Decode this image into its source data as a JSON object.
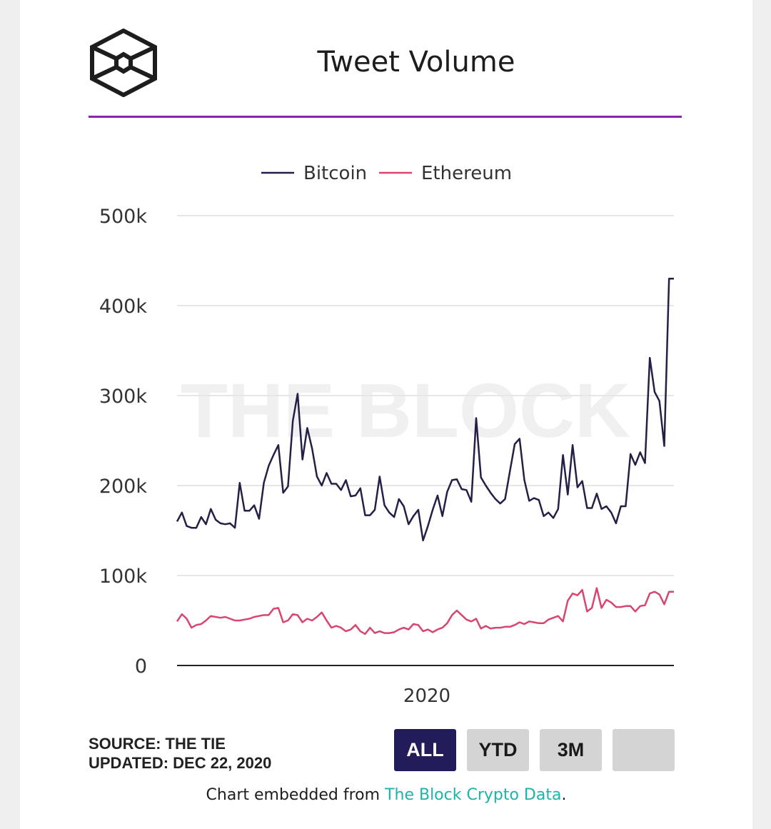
{
  "header": {
    "title": "Tweet Volume"
  },
  "chart_data": {
    "type": "line",
    "title": "Tweet Volume",
    "x_tick_labels": [
      "2020"
    ],
    "y_tick_labels": [
      "0",
      "100k",
      "200k",
      "300k",
      "400k",
      "500k"
    ],
    "y_ticks": [
      0,
      100000,
      200000,
      300000,
      400000,
      500000
    ],
    "ylim": [
      0,
      500000
    ],
    "grid": true,
    "legend_position": "top-center",
    "watermark": "THE BLOCK",
    "x": [
      0,
      1,
      2,
      3,
      4,
      5,
      6,
      7,
      8,
      9,
      10,
      11,
      12,
      13,
      14,
      15,
      16,
      17,
      18,
      19,
      20,
      21,
      22,
      23,
      24,
      25,
      26,
      27,
      28,
      29,
      30,
      31,
      32,
      33,
      34,
      35,
      36,
      37,
      38,
      39,
      40,
      41,
      42,
      43,
      44,
      45,
      46,
      47,
      48,
      49,
      50,
      51,
      52,
      53,
      54,
      55,
      56,
      57,
      58,
      59,
      60,
      61,
      62,
      63,
      64,
      65,
      66,
      67,
      68,
      69,
      70,
      71,
      72,
      73,
      74,
      75,
      76,
      77,
      78,
      79,
      80,
      81,
      82,
      83,
      84,
      85,
      86,
      87,
      88,
      89,
      90,
      91,
      92,
      93,
      94,
      95,
      96,
      97,
      98,
      99,
      100,
      101,
      102,
      103
    ],
    "series": [
      {
        "name": "Bitcoin",
        "color": "#232047",
        "values": [
          160000,
          170000,
          155000,
          153000,
          153000,
          165000,
          157000,
          174000,
          162000,
          158000,
          157000,
          158000,
          153000,
          203000,
          172000,
          172000,
          178000,
          163000,
          203000,
          222000,
          234000,
          245000,
          192000,
          199000,
          272000,
          302000,
          229000,
          264000,
          241000,
          210000,
          200000,
          214000,
          202000,
          202000,
          195000,
          206000,
          188000,
          189000,
          197000,
          167000,
          167000,
          173000,
          210000,
          178000,
          170000,
          165000,
          185000,
          177000,
          157000,
          166000,
          173000,
          139000,
          155000,
          173000,
          189000,
          166000,
          193000,
          206000,
          207000,
          196000,
          195000,
          182000,
          275000,
          209000,
          200000,
          192000,
          185000,
          180000,
          185000,
          216000,
          246000,
          252000,
          206000,
          183000,
          186000,
          184000,
          166000,
          170000,
          164000,
          174000,
          234000,
          190000,
          245000,
          198000,
          205000,
          175000,
          175000,
          191000,
          174000,
          177000,
          170000,
          158000,
          177000,
          177000,
          235000,
          223000,
          237000,
          225000,
          342000,
          304000,
          294000,
          244000,
          430000,
          430000
        ]
      },
      {
        "name": "Ethereum",
        "color": "#d8456e",
        "values": [
          49000,
          57000,
          52000,
          42000,
          45000,
          46000,
          50000,
          55000,
          54000,
          53000,
          54000,
          52000,
          50000,
          50000,
          51000,
          52000,
          54000,
          55000,
          56000,
          56000,
          63000,
          64000,
          48000,
          50000,
          57000,
          56000,
          48000,
          52000,
          50000,
          54000,
          59000,
          50000,
          42000,
          44000,
          42000,
          38000,
          40000,
          45000,
          38000,
          35000,
          42000,
          36000,
          38000,
          36000,
          36000,
          37000,
          40000,
          42000,
          40000,
          46000,
          45000,
          38000,
          40000,
          37000,
          40000,
          42000,
          47000,
          56000,
          61000,
          56000,
          51000,
          49000,
          52000,
          41000,
          44000,
          41000,
          42000,
          42000,
          43000,
          43000,
          45000,
          48000,
          46000,
          49000,
          48000,
          47000,
          47000,
          51000,
          53000,
          55000,
          49000,
          72000,
          80000,
          78000,
          84000,
          60000,
          64000,
          86000,
          64000,
          73000,
          70000,
          65000,
          65000,
          66000,
          66000,
          60000,
          66000,
          67000,
          80000,
          82000,
          79000,
          68000,
          82000,
          82000
        ]
      }
    ]
  },
  "footer": {
    "source": "SOURCE: THE TIE",
    "updated": "UPDATED: DEC 22, 2020",
    "buttons": {
      "all": "ALL",
      "ytd": "YTD",
      "three_m": "3M",
      "blank": ""
    },
    "embed_prefix": "Chart embedded from ",
    "embed_link": "The Block Crypto Data",
    "embed_suffix": "."
  }
}
